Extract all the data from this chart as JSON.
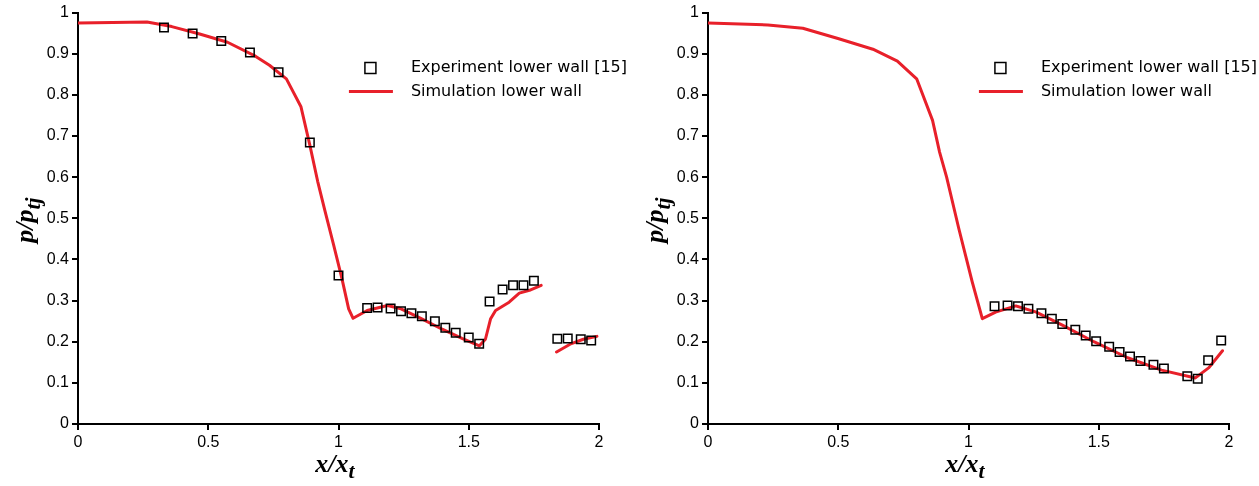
{
  "chart_data": [
    {
      "type": "line",
      "xlabel": "x/x$_{t}$",
      "ylabel": "p/p$_{tj}$",
      "xlim": [
        0,
        2
      ],
      "xticks": [
        0,
        0.5,
        1,
        1.5,
        2
      ],
      "ylim": [
        0,
        1
      ],
      "yticks": [
        0,
        0.1,
        0.2,
        0.3,
        0.4,
        0.5,
        0.6,
        0.7,
        0.8,
        0.9,
        1
      ],
      "grid": false,
      "legend": "top right",
      "series": [
        {
          "name": "Experiment lower wall [15]",
          "type": "scatter",
          "marker": "square",
          "color": "#000000",
          "x": [
            0.33,
            0.44,
            0.55,
            0.66,
            0.77,
            0.89,
            1.0,
            1.11,
            1.15,
            1.2,
            1.24,
            1.28,
            1.32,
            1.37,
            1.41,
            1.45,
            1.5,
            1.54,
            1.58,
            1.63,
            1.67,
            1.71,
            1.75,
            1.84,
            1.88,
            1.93,
            1.97
          ],
          "values": [
            0.964,
            0.949,
            0.931,
            0.903,
            0.855,
            0.684,
            0.361,
            0.282,
            0.283,
            0.281,
            0.274,
            0.269,
            0.262,
            0.25,
            0.234,
            0.222,
            0.21,
            0.195,
            0.298,
            0.327,
            0.337,
            0.337,
            0.348,
            0.207,
            0.208,
            0.206,
            0.203
          ]
        },
        {
          "name": "Simulation lower wall",
          "type": "line",
          "line_style": "solid",
          "color": "#e8202a",
          "x": [
            0,
            0.265,
            0.36,
            0.467,
            0.574,
            0.681,
            0.735,
            0.8,
            0.856,
            0.89,
            0.92,
            0.948,
            0.981,
            1.013,
            1.039,
            1.056,
            1.11,
            1.188,
            1.24,
            1.318,
            1.396,
            1.474,
            1.541,
            1.564,
            1.584,
            1.603,
            1.655,
            1.694,
            1.733,
            1.778,
            1.81,
            1.837,
            1.889,
            1.94,
            1.992
          ],
          "values": [
            0.975,
            0.977,
            0.966,
            0.948,
            0.928,
            0.894,
            0.872,
            0.839,
            0.771,
            0.678,
            0.59,
            0.518,
            0.436,
            0.354,
            0.28,
            0.257,
            0.276,
            0.288,
            0.28,
            0.256,
            0.231,
            0.208,
            0.19,
            0.206,
            0.256,
            0.276,
            0.296,
            0.318,
            0.325,
            0.337,
            null,
            0.175,
            0.194,
            0.206,
            0.213
          ]
        }
      ]
    },
    {
      "type": "line",
      "xlabel": "x/x$_{t}$",
      "ylabel": "p/p$_{tj}$",
      "xlim": [
        0,
        2
      ],
      "xticks": [
        0,
        0.5,
        1,
        1.5,
        2
      ],
      "ylim": [
        0,
        1
      ],
      "yticks": [
        0,
        0.1,
        0.2,
        0.3,
        0.4,
        0.5,
        0.6,
        0.7,
        0.8,
        0.9,
        1
      ],
      "grid": false,
      "legend": "top right",
      "series": [
        {
          "name": "Experiment lower wall [15]",
          "type": "scatter",
          "marker": "square",
          "color": "#000000",
          "x": [
            1.1,
            1.15,
            1.19,
            1.23,
            1.28,
            1.32,
            1.36,
            1.41,
            1.45,
            1.49,
            1.54,
            1.58,
            1.62,
            1.66,
            1.71,
            1.75,
            1.84,
            1.88,
            1.92,
            1.97
          ],
          "values": [
            0.286,
            0.288,
            0.286,
            0.28,
            0.269,
            0.256,
            0.243,
            0.229,
            0.215,
            0.201,
            0.188,
            0.175,
            0.164,
            0.153,
            0.144,
            0.135,
            0.116,
            0.11,
            0.155,
            0.203
          ]
        },
        {
          "name": "Simulation lower wall",
          "type": "line",
          "line_style": "solid",
          "color": "#e8202a",
          "x": [
            0,
            0.23,
            0.364,
            0.499,
            0.633,
            0.727,
            0.801,
            0.862,
            0.889,
            0.916,
            0.962,
            1.014,
            1.053,
            1.104,
            1.182,
            1.26,
            1.364,
            1.481,
            1.611,
            1.741,
            1.871,
            1.923,
            1.975
          ],
          "values": [
            0.975,
            0.97,
            0.962,
            0.937,
            0.911,
            0.882,
            0.839,
            0.738,
            0.661,
            0.6,
            0.477,
            0.346,
            0.256,
            0.272,
            0.287,
            0.272,
            0.239,
            0.2,
            0.161,
            0.131,
            0.112,
            0.137,
            0.178
          ]
        }
      ]
    }
  ]
}
